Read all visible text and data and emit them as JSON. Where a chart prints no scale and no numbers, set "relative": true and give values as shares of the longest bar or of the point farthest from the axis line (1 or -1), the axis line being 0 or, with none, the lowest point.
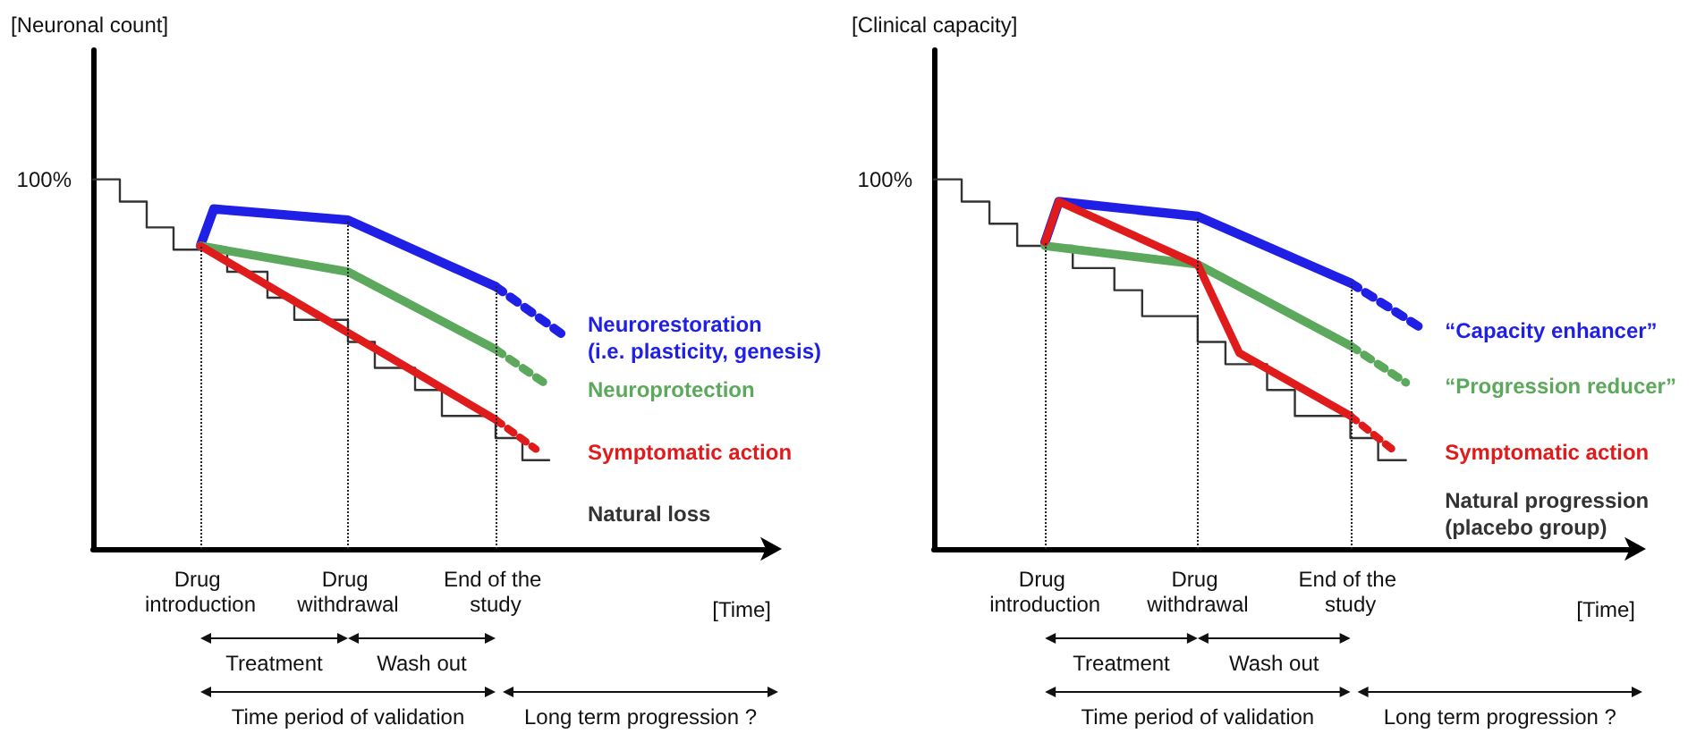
{
  "chart_data": [
    {
      "type": "line",
      "relative": true,
      "ylabel": "[Neuronal count]",
      "xlabel": "[Time]",
      "tick_labels": "x",
      "categories": [
        null,
        null,
        null,
        null,
        null,
        null,
        null,
        null,
        "Drug introduction",
        null,
        null,
        null,
        null,
        null,
        null,
        null,
        null,
        null,
        null,
        "Drug withdrawal",
        null,
        null,
        null,
        null,
        null,
        null,
        null,
        null,
        null,
        null,
        "End of the study",
        null,
        null,
        null,
        null,
        null,
        null,
        null,
        null,
        null,
        null,
        null,
        null,
        null,
        null,
        null,
        null,
        null,
        null,
        null,
        null
      ],
      "annotations": [
        "Treatment",
        "Wash out",
        "Time period of validation",
        "Long term progression ?",
        "100%"
      ],
      "ref_lines": [
        {
          "axis": "x",
          "value": "Drug introduction",
          "line_style": "dotted"
        },
        {
          "axis": "x",
          "value": "Drug withdrawal",
          "line_style": "dotted"
        },
        {
          "axis": "x",
          "value": "End of the study",
          "line_style": "dotted"
        }
      ],
      "series": [
        {
          "name": "Natural loss",
          "type": "step",
          "color": "#333333",
          "values": [
            1.0,
            null,
            0.94,
            null,
            0.87,
            null,
            0.81,
            null,
            null,
            null,
            0.75,
            null,
            null,
            0.68,
            null,
            0.62,
            null,
            null,
            null,
            0.56,
            null,
            0.49,
            null,
            null,
            0.43,
            null,
            0.36,
            null,
            null,
            null,
            0.3,
            null,
            0.24,
            null,
            0.24,
            null,
            null,
            null,
            null,
            null,
            null,
            null,
            null,
            null,
            null,
            null,
            null,
            null,
            null,
            null,
            null
          ]
        },
        {
          "name": "Neurorestoration\n(i.e. plasticity, genesis)",
          "color": "#1f1fe6",
          "values": [
            null,
            null,
            null,
            null,
            null,
            null,
            null,
            null,
            0.82,
            0.92,
            null,
            null,
            null,
            null,
            null,
            null,
            null,
            null,
            null,
            0.89,
            null,
            null,
            null,
            null,
            null,
            null,
            null,
            null,
            null,
            null,
            0.71,
            null,
            null,
            null,
            null,
            null,
            null,
            null,
            null,
            null,
            null,
            null,
            null,
            null,
            null,
            null,
            null,
            null,
            null,
            null,
            null
          ]
        },
        {
          "color": "#1f1fe6",
          "line_style": "dotted",
          "values": [
            null,
            null,
            null,
            null,
            null,
            null,
            null,
            null,
            null,
            null,
            null,
            null,
            null,
            null,
            null,
            null,
            null,
            null,
            null,
            null,
            null,
            null,
            null,
            null,
            null,
            null,
            null,
            null,
            null,
            null,
            0.71,
            null,
            null,
            null,
            null,
            0.58,
            null,
            null,
            null,
            null,
            null,
            null,
            null,
            null,
            null,
            null,
            null,
            null,
            null,
            null,
            null
          ]
        },
        {
          "name": "Neuroprotection",
          "color": "#5ca85c",
          "values": [
            null,
            null,
            null,
            null,
            null,
            null,
            null,
            null,
            0.82,
            null,
            null,
            null,
            null,
            null,
            null,
            null,
            null,
            null,
            null,
            0.75,
            null,
            null,
            null,
            null,
            null,
            null,
            null,
            null,
            null,
            null,
            0.54,
            null,
            null,
            null,
            null,
            null,
            null,
            null,
            null,
            null,
            null,
            null,
            null,
            null,
            null,
            null,
            null,
            null,
            null,
            null,
            null
          ]
        },
        {
          "color": "#5ca85c",
          "line_style": "dotted",
          "values": [
            null,
            null,
            null,
            null,
            null,
            null,
            null,
            null,
            null,
            null,
            null,
            null,
            null,
            null,
            null,
            null,
            null,
            null,
            null,
            null,
            null,
            null,
            null,
            null,
            null,
            null,
            null,
            null,
            null,
            null,
            0.54,
            null,
            null,
            null,
            0.44,
            null,
            null,
            null,
            null,
            null,
            null,
            null,
            null,
            null,
            null,
            null,
            null,
            null,
            null,
            null,
            null
          ]
        },
        {
          "name": "Symptomatic action",
          "color": "#e01b1b",
          "values": [
            null,
            null,
            null,
            null,
            null,
            null,
            null,
            null,
            0.82,
            null,
            null,
            null,
            null,
            null,
            null,
            null,
            null,
            null,
            null,
            null,
            null,
            null,
            null,
            null,
            null,
            null,
            null,
            null,
            null,
            null,
            0.35,
            null,
            null,
            null,
            null,
            null,
            null,
            null,
            null,
            null,
            null,
            null,
            null,
            null,
            null,
            null,
            null,
            null,
            null,
            null,
            null
          ]
        },
        {
          "color": "#e01b1b",
          "line_style": "dotted",
          "values": [
            null,
            null,
            null,
            null,
            null,
            null,
            null,
            null,
            null,
            null,
            null,
            null,
            null,
            null,
            null,
            null,
            null,
            null,
            null,
            null,
            null,
            null,
            null,
            null,
            null,
            null,
            null,
            null,
            null,
            null,
            0.35,
            null,
            null,
            0.27,
            null,
            null,
            null,
            null,
            null,
            null,
            null,
            null,
            null,
            null,
            null,
            null,
            null,
            null,
            null,
            null,
            null
          ]
        }
      ]
    },
    {
      "type": "line",
      "relative": true,
      "ylabel": "[Clinical capacity]",
      "xlabel": "[Time]",
      "tick_labels": "x",
      "categories": [
        null,
        null,
        null,
        null,
        null,
        null,
        null,
        null,
        "Drug introduction",
        null,
        null,
        null,
        null,
        null,
        null,
        null,
        null,
        null,
        null,
        "Drug withdrawal",
        null,
        null,
        null,
        null,
        null,
        null,
        null,
        null,
        null,
        null,
        "End of the study",
        null,
        null,
        null,
        null,
        null,
        null,
        null,
        null,
        null,
        null,
        null,
        null,
        null,
        null,
        null,
        null,
        null,
        null,
        null,
        null
      ],
      "annotations": [
        "Treatment",
        "Wash out",
        "Time period of validation",
        "Long term progression ?",
        "100%"
      ],
      "ref_lines": [
        {
          "axis": "x",
          "value": "Drug introduction",
          "line_style": "dotted"
        },
        {
          "axis": "x",
          "value": "Drug withdrawal",
          "line_style": "dotted"
        },
        {
          "axis": "x",
          "value": "End of the study",
          "line_style": "dotted"
        }
      ],
      "series": [
        {
          "name": "Natural progression\n(placebo group)",
          "type": "step",
          "color": "#333333",
          "values": [
            1.0,
            null,
            0.94,
            null,
            0.88,
            null,
            0.82,
            null,
            null,
            null,
            0.76,
            null,
            null,
            0.7,
            null,
            0.63,
            null,
            null,
            null,
            0.56,
            null,
            0.5,
            null,
            null,
            0.43,
            null,
            0.36,
            null,
            null,
            null,
            0.3,
            null,
            0.24,
            null,
            0.24,
            null,
            null,
            null,
            null,
            null,
            null,
            null,
            null,
            null,
            null,
            null,
            null,
            null,
            null,
            null,
            null
          ]
        },
        {
          "name": "“Capacity enhancer”",
          "color": "#1f1fe6",
          "values": [
            null,
            null,
            null,
            null,
            null,
            null,
            null,
            null,
            0.83,
            0.94,
            null,
            null,
            null,
            null,
            null,
            null,
            null,
            null,
            null,
            0.9,
            null,
            null,
            null,
            null,
            null,
            null,
            null,
            null,
            null,
            null,
            0.72,
            null,
            null,
            null,
            null,
            null,
            null,
            null,
            null,
            null,
            null,
            null,
            null,
            null,
            null,
            null,
            null,
            null,
            null,
            null,
            null
          ]
        },
        {
          "color": "#1f1fe6",
          "line_style": "dotted",
          "values": [
            null,
            null,
            null,
            null,
            null,
            null,
            null,
            null,
            null,
            null,
            null,
            null,
            null,
            null,
            null,
            null,
            null,
            null,
            null,
            null,
            null,
            null,
            null,
            null,
            null,
            null,
            null,
            null,
            null,
            null,
            0.72,
            null,
            null,
            null,
            null,
            0.6,
            null,
            null,
            null,
            null,
            null,
            null,
            null,
            null,
            null,
            null,
            null,
            null,
            null,
            null,
            null
          ]
        },
        {
          "name": "“Progression reducer”",
          "color": "#5ca85c",
          "values": [
            null,
            null,
            null,
            null,
            null,
            null,
            null,
            null,
            0.82,
            null,
            null,
            null,
            null,
            null,
            null,
            null,
            null,
            null,
            null,
            0.77,
            null,
            null,
            null,
            null,
            null,
            null,
            null,
            null,
            null,
            null,
            0.55,
            null,
            null,
            null,
            null,
            null,
            null,
            null,
            null,
            null,
            null,
            null,
            null,
            null,
            null,
            null,
            null,
            null,
            null,
            null,
            null
          ]
        },
        {
          "color": "#5ca85c",
          "line_style": "dotted",
          "values": [
            null,
            null,
            null,
            null,
            null,
            null,
            null,
            null,
            null,
            null,
            null,
            null,
            null,
            null,
            null,
            null,
            null,
            null,
            null,
            null,
            null,
            null,
            null,
            null,
            null,
            null,
            null,
            null,
            null,
            null,
            0.55,
            null,
            null,
            null,
            0.45,
            null,
            null,
            null,
            null,
            null,
            null,
            null,
            null,
            null,
            null,
            null,
            null,
            null,
            null,
            null,
            null
          ]
        },
        {
          "name": "Symptomatic action",
          "color": "#e01b1b",
          "values": [
            null,
            null,
            null,
            null,
            null,
            null,
            null,
            null,
            0.83,
            0.94,
            null,
            null,
            null,
            null,
            null,
            null,
            null,
            null,
            null,
            0.77,
            null,
            null,
            0.53,
            null,
            null,
            null,
            null,
            null,
            null,
            null,
            0.36,
            null,
            null,
            null,
            null,
            null,
            null,
            null,
            null,
            null,
            null,
            null,
            null,
            null,
            null,
            null,
            null,
            null,
            null,
            null,
            null
          ]
        },
        {
          "color": "#e01b1b",
          "line_style": "dotted",
          "values": [
            null,
            null,
            null,
            null,
            null,
            null,
            null,
            null,
            null,
            null,
            null,
            null,
            null,
            null,
            null,
            null,
            null,
            null,
            null,
            null,
            null,
            null,
            null,
            null,
            null,
            null,
            null,
            null,
            null,
            null,
            0.36,
            null,
            null,
            0.27,
            null,
            null,
            null,
            null,
            null,
            null,
            null,
            null,
            null,
            null,
            null,
            null,
            null,
            null,
            null,
            null,
            null
          ]
        }
      ]
    }
  ]
}
